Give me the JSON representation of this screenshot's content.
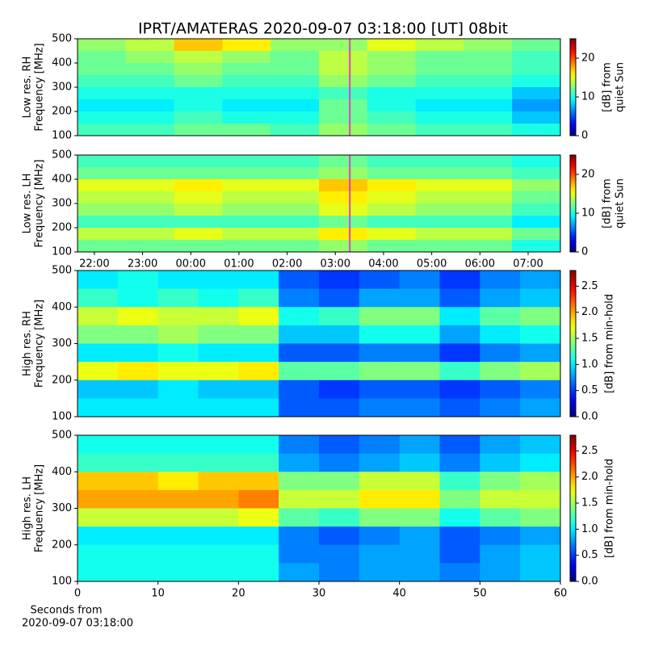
{
  "chart_data": [
    {
      "type": "heatmap",
      "title": "IPRT/AMATERAS 2020-09-07 03:18:00 [UT]   08bit",
      "ylabel": [
        "Low res. RH",
        "Frequency [MHz]"
      ],
      "xlim": [
        21.65,
        31.67
      ],
      "ylim": [
        100,
        500
      ],
      "yticks": [
        100,
        200,
        300,
        400,
        500
      ],
      "colormap": "jet",
      "clim": [
        0,
        25
      ],
      "cticks": [
        0,
        10,
        20
      ],
      "clabel": [
        "[dB] from",
        "quiet Sun"
      ],
      "marker": {
        "x": 27.3,
        "color": "#e040c0"
      },
      "values": [
        [
          13,
          14,
          17,
          16,
          13,
          13,
          15,
          14,
          13,
          12
        ],
        [
          12,
          13,
          14,
          13,
          12,
          14,
          13,
          12,
          12,
          11
        ],
        [
          12,
          12,
          13,
          12,
          12,
          14,
          13,
          12,
          12,
          11
        ],
        [
          11,
          11,
          12,
          11,
          11,
          13,
          12,
          11,
          11,
          10
        ],
        [
          10,
          10,
          10,
          10,
          10,
          11,
          10,
          10,
          10,
          8
        ],
        [
          9,
          9,
          10,
          9,
          9,
          12,
          10,
          9,
          9,
          7
        ],
        [
          10,
          10,
          11,
          10,
          10,
          12,
          11,
          10,
          10,
          8
        ],
        [
          11,
          11,
          12,
          12,
          11,
          13,
          12,
          11,
          11,
          10
        ]
      ]
    },
    {
      "type": "heatmap",
      "ylabel": [
        "Low res. LH",
        "Frequency [MHz]"
      ],
      "xlim": [
        21.65,
        31.67
      ],
      "xticks": [
        {
          "value": 22,
          "label": "22:00"
        },
        {
          "value": 23,
          "label": "23:00"
        },
        {
          "value": 24,
          "label": "00:00"
        },
        {
          "value": 25,
          "label": "01:00"
        },
        {
          "value": 26,
          "label": "02:00"
        },
        {
          "value": 27,
          "label": "03:00"
        },
        {
          "value": 28,
          "label": "04:00"
        },
        {
          "value": 29,
          "label": "05:00"
        },
        {
          "value": 30,
          "label": "06:00"
        },
        {
          "value": 31,
          "label": "07:00"
        }
      ],
      "ylim": [
        100,
        500
      ],
      "yticks": [
        100,
        200,
        300,
        400,
        500
      ],
      "colormap": "jet",
      "clim": [
        0,
        25
      ],
      "cticks": [
        0,
        10,
        20
      ],
      "clabel": [
        "[dB] from",
        "quiet Sun"
      ],
      "marker": {
        "x": 27.3,
        "color": "#e040c0"
      },
      "values": [
        [
          11,
          11,
          11,
          11,
          11,
          12,
          11,
          11,
          11,
          10
        ],
        [
          12,
          12,
          12,
          12,
          12,
          13,
          12,
          12,
          12,
          11
        ],
        [
          15,
          15,
          16,
          15,
          15,
          17,
          16,
          15,
          15,
          13
        ],
        [
          14,
          14,
          15,
          14,
          14,
          16,
          15,
          14,
          14,
          12
        ],
        [
          13,
          13,
          14,
          13,
          13,
          15,
          14,
          13,
          13,
          11
        ],
        [
          11,
          11,
          11,
          11,
          11,
          12,
          11,
          11,
          11,
          9
        ],
        [
          14,
          14,
          15,
          14,
          14,
          16,
          15,
          14,
          14,
          12
        ],
        [
          12,
          12,
          12,
          12,
          12,
          13,
          12,
          12,
          12,
          10
        ]
      ]
    },
    {
      "type": "heatmap",
      "ylabel": [
        "High res. RH",
        "Frequency [MHz]"
      ],
      "xlim": [
        0,
        60
      ],
      "ylim": [
        100,
        500
      ],
      "yticks": [
        100,
        200,
        300,
        400,
        500
      ],
      "colormap": "jet",
      "clim": [
        0,
        2.8
      ],
      "cticks": [
        {
          "value": 0,
          "label": "0.0"
        },
        {
          "value": 0.5,
          "label": "0.5"
        },
        {
          "value": 1,
          "label": "1.0"
        },
        {
          "value": 1.5,
          "label": "1.5"
        },
        {
          "value": 2,
          "label": "2.0"
        },
        {
          "value": 2.5,
          "label": "2.5"
        }
      ],
      "clabel": [
        "[dB] from min-hold"
      ],
      "values": [
        [
          1.0,
          1.1,
          1.0,
          1.0,
          1.0,
          0.6,
          0.5,
          0.6,
          0.7,
          0.5,
          0.7,
          0.8
        ],
        [
          1.2,
          1.1,
          1.2,
          1.1,
          1.2,
          0.7,
          0.6,
          0.8,
          0.8,
          0.6,
          0.8,
          0.9
        ],
        [
          1.6,
          1.7,
          1.6,
          1.6,
          1.7,
          1.1,
          1.2,
          1.4,
          1.4,
          1.0,
          1.3,
          1.4
        ],
        [
          1.4,
          1.4,
          1.5,
          1.4,
          1.4,
          0.9,
          0.9,
          1.1,
          1.1,
          0.8,
          1.0,
          1.1
        ],
        [
          1.0,
          1.0,
          1.1,
          1.0,
          1.0,
          0.6,
          0.6,
          0.7,
          0.7,
          0.5,
          0.7,
          0.8
        ],
        [
          1.7,
          1.8,
          1.7,
          1.7,
          1.8,
          1.3,
          1.3,
          1.4,
          1.4,
          1.2,
          1.4,
          1.5
        ],
        [
          0.9,
          0.9,
          1.0,
          0.9,
          0.9,
          0.6,
          0.5,
          0.6,
          0.6,
          0.5,
          0.6,
          0.7
        ],
        [
          1.0,
          1.0,
          1.0,
          1.0,
          1.0,
          0.6,
          0.6,
          0.7,
          0.7,
          0.6,
          0.7,
          0.8
        ]
      ]
    },
    {
      "type": "heatmap",
      "ylabel": [
        "High res. LH",
        "Frequency [MHz]"
      ],
      "xlabel": [
        "Seconds from",
        "2020-09-07 03:18:00"
      ],
      "xlim": [
        0,
        60
      ],
      "xticks": [
        0,
        10,
        20,
        30,
        40,
        50,
        60
      ],
      "ylim": [
        100,
        500
      ],
      "yticks": [
        100,
        200,
        300,
        400,
        500
      ],
      "colormap": "jet",
      "clim": [
        0,
        2.8
      ],
      "cticks": [
        {
          "value": 0,
          "label": "0.0"
        },
        {
          "value": 0.5,
          "label": "0.5"
        },
        {
          "value": 1,
          "label": "1.0"
        },
        {
          "value": 1.5,
          "label": "1.5"
        },
        {
          "value": 2,
          "label": "2.0"
        },
        {
          "value": 2.5,
          "label": "2.5"
        }
      ],
      "clabel": [
        "[dB] from min-hold"
      ],
      "values": [
        [
          1.1,
          1.1,
          1.1,
          1.1,
          1.1,
          0.7,
          0.6,
          0.7,
          0.8,
          0.6,
          0.8,
          0.9
        ],
        [
          1.2,
          1.2,
          1.2,
          1.2,
          1.2,
          0.8,
          0.7,
          0.8,
          0.9,
          0.7,
          0.9,
          1.0
        ],
        [
          1.9,
          1.9,
          1.8,
          1.9,
          1.9,
          1.4,
          1.4,
          1.6,
          1.6,
          1.2,
          1.4,
          1.5
        ],
        [
          2.0,
          2.0,
          2.0,
          2.0,
          2.1,
          1.6,
          1.6,
          1.8,
          1.8,
          1.4,
          1.6,
          1.6
        ],
        [
          1.6,
          1.6,
          1.6,
          1.6,
          1.7,
          1.3,
          1.2,
          1.4,
          1.4,
          1.1,
          1.3,
          1.4
        ],
        [
          1.0,
          1.0,
          1.0,
          1.0,
          1.0,
          0.7,
          0.6,
          0.7,
          0.8,
          0.6,
          0.7,
          0.8
        ],
        [
          1.1,
          1.1,
          1.1,
          1.1,
          1.1,
          0.7,
          0.7,
          0.8,
          0.8,
          0.6,
          0.8,
          0.9
        ],
        [
          1.1,
          1.1,
          1.1,
          1.1,
          1.1,
          0.8,
          0.7,
          0.8,
          0.8,
          0.7,
          0.8,
          0.9
        ]
      ]
    }
  ]
}
